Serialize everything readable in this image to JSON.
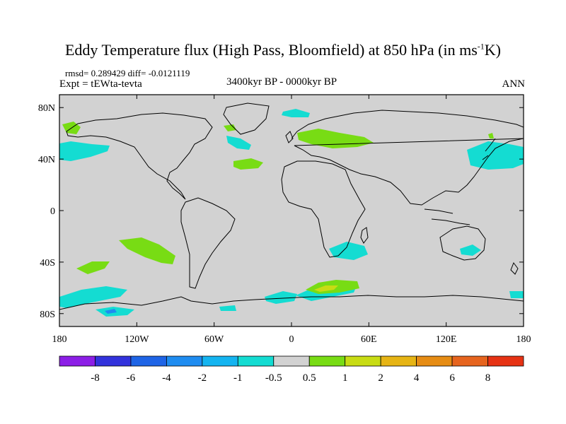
{
  "title": {
    "main": "Eddy Temperature flux (High Pass, Bloomfield) at 850 hPa (in ms",
    "sup": "-1",
    "end": "K)"
  },
  "stats": {
    "rmsd": "rmsd= 0.289429 diff= -0.0121119",
    "expt": "Expt = tEWta-tevta",
    "period": "3400kyr BP - 0000kyr BP",
    "season": "ANN"
  },
  "axes": {
    "lat_labels": [
      "80N",
      "40N",
      "0",
      "40S",
      "80S"
    ],
    "lat_values": [
      80,
      40,
      0,
      -40,
      -80
    ],
    "lon_labels": [
      "180",
      "120W",
      "60W",
      "0",
      "60E",
      "120E",
      "180"
    ],
    "lon_values": [
      -180,
      -120,
      -60,
      0,
      60,
      120,
      180
    ],
    "lon_range": [
      -180,
      180
    ],
    "lat_range": [
      -90,
      90
    ]
  },
  "colorbar": {
    "colors": [
      "#8c1ee6",
      "#3232dc",
      "#1e64e6",
      "#1e8cf0",
      "#14b4f0",
      "#14dcd2",
      "#d2d2d2",
      "#78dc14",
      "#c8dc14",
      "#e6b414",
      "#e68c14",
      "#e6641e",
      "#e63214"
    ],
    "labels": [
      "-8",
      "-6",
      "-4",
      "-2",
      "-1",
      "-0.5",
      "0.5",
      "1",
      "2",
      "4",
      "6",
      "8"
    ]
  },
  "field": {
    "background": "#d2d2d2",
    "cyan": "#14dcd2",
    "green": "#78dc14",
    "yellow": "#c8dc14",
    "blue": "#1e8cf0"
  }
}
